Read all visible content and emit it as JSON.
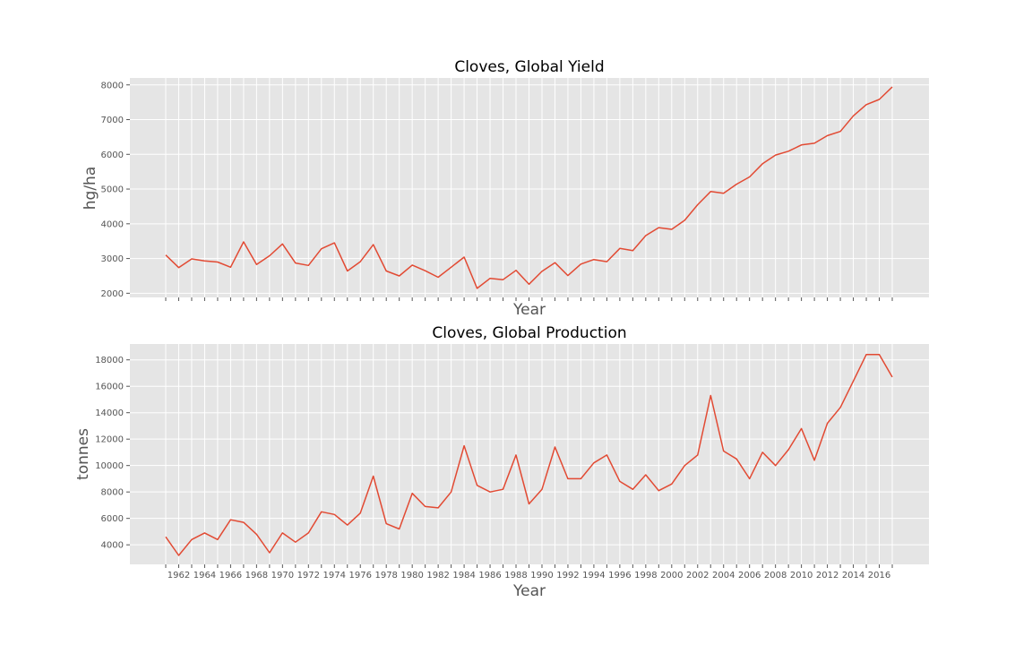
{
  "chart_data": [
    {
      "type": "line",
      "title": "Cloves, Global Yield",
      "xlabel": "Year",
      "ylabel": "hg/ha",
      "x": [
        1961,
        1962,
        1963,
        1964,
        1965,
        1966,
        1967,
        1968,
        1969,
        1970,
        1971,
        1972,
        1973,
        1974,
        1975,
        1976,
        1977,
        1978,
        1979,
        1980,
        1981,
        1982,
        1983,
        1984,
        1985,
        1986,
        1987,
        1988,
        1989,
        1990,
        1991,
        1992,
        1993,
        1994,
        1995,
        1996,
        1997,
        1998,
        1999,
        2000,
        2001,
        2002,
        2003,
        2004,
        2005,
        2006,
        2007,
        2008,
        2009,
        2010,
        2011,
        2012,
        2013,
        2014,
        2015,
        2016,
        2017
      ],
      "values": [
        3100,
        2740,
        2990,
        2930,
        2900,
        2750,
        3480,
        2830,
        3080,
        3420,
        2870,
        2800,
        3280,
        3450,
        2640,
        2910,
        3400,
        2640,
        2500,
        2810,
        2650,
        2460,
        2750,
        3040,
        2140,
        2430,
        2390,
        2660,
        2260,
        2630,
        2880,
        2510,
        2840,
        2970,
        2910,
        3290,
        3230,
        3660,
        3890,
        3840,
        4100,
        4550,
        4930,
        4880,
        5140,
        5350,
        5730,
        5980,
        6090,
        6270,
        6320,
        6540,
        6660,
        7110,
        7430,
        7580,
        7940
      ],
      "series_name": "Yield",
      "ylim": [
        1880,
        8200
      ],
      "yticks": [
        2000,
        3000,
        4000,
        5000,
        6000,
        7000,
        8000
      ],
      "xtick_labels": []
    },
    {
      "type": "line",
      "title": "Cloves, Global Production",
      "xlabel": "Year",
      "ylabel": "tonnes",
      "x": [
        1961,
        1962,
        1963,
        1964,
        1965,
        1966,
        1967,
        1968,
        1969,
        1970,
        1971,
        1972,
        1973,
        1974,
        1975,
        1976,
        1977,
        1978,
        1979,
        1980,
        1981,
        1982,
        1983,
        1984,
        1985,
        1986,
        1987,
        1988,
        1989,
        1990,
        1991,
        1992,
        1993,
        1994,
        1995,
        1996,
        1997,
        1998,
        1999,
        2000,
        2001,
        2002,
        2003,
        2004,
        2005,
        2006,
        2007,
        2008,
        2009,
        2010,
        2011,
        2012,
        2013,
        2014,
        2015,
        2016,
        2017
      ],
      "values": [
        4600,
        3200,
        4400,
        4900,
        4400,
        5900,
        5700,
        4800,
        3400,
        4900,
        4200,
        4900,
        6500,
        6300,
        5500,
        6400,
        9200,
        5600,
        5200,
        7900,
        6900,
        6800,
        8000,
        11500,
        8500,
        8000,
        8200,
        10800,
        7100,
        8200,
        11400,
        9000,
        9000,
        10200,
        10800,
        8800,
        8200,
        9300,
        8100,
        8600,
        10000,
        10800,
        15300,
        11100,
        10500,
        9000,
        11000,
        10000,
        11200,
        12800,
        10400,
        13200,
        14400,
        16400,
        18400,
        18400,
        16700
      ],
      "series_name": "Production",
      "ylim": [
        2520,
        19200
      ],
      "yticks": [
        4000,
        6000,
        8000,
        10000,
        12000,
        14000,
        16000,
        18000
      ],
      "xtick_labels": [
        1962,
        1964,
        1966,
        1968,
        1970,
        1972,
        1974,
        1976,
        1978,
        1980,
        1982,
        1984,
        1986,
        1988,
        1990,
        1992,
        1994,
        1996,
        1998,
        2000,
        2002,
        2004,
        2006,
        2008,
        2010,
        2012,
        2014,
        2016
      ]
    }
  ],
  "colors": {
    "line": "#e24a33",
    "panel": "#e5e5e5",
    "grid": "#ffffff",
    "text": "#555555"
  }
}
